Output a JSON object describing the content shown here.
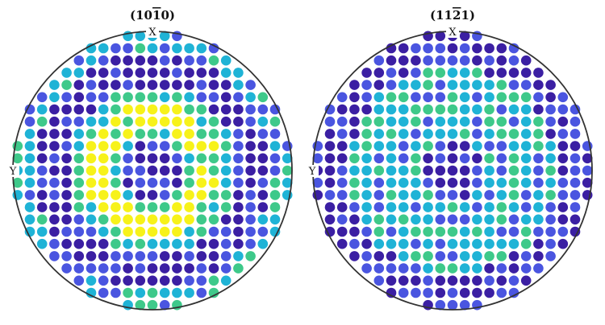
{
  "figure": {
    "colors": {
      "low": "#3b1fa3",
      "low_mid": "#4a55e0",
      "mid": "#1fb3d6",
      "high_mid": "#3ec98a",
      "high": "#f7f21a",
      "outline": "#333333"
    },
    "plots": [
      {
        "id": "pole-10-10",
        "title": "(10̅1̅0)",
        "title_parts": [
          "(10",
          "1",
          "0)"
        ],
        "axis_x": "X",
        "axis_y": "Y",
        "pattern": "yellow-ring"
      },
      {
        "id": "pole-11-21",
        "title": "(11̅2̅1)",
        "title_parts": [
          "(11",
          "2",
          "1)"
        ],
        "axis_x": "X",
        "axis_y": "Y",
        "pattern": "green-rings"
      }
    ]
  }
}
